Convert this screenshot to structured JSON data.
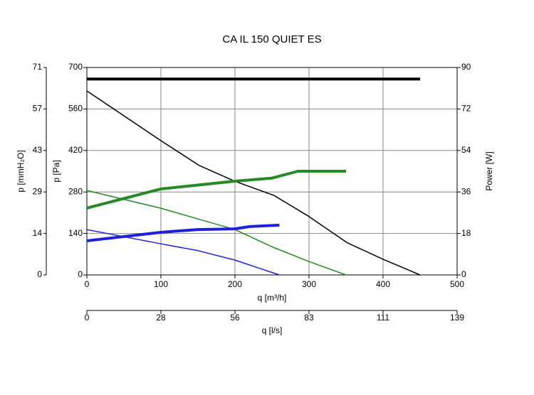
{
  "chart_data": {
    "type": "line",
    "title": "CA IL 150 QUIET ES",
    "xlabel": "q [m³/h]",
    "xlim": [
      0,
      500
    ],
    "xticks": [
      0,
      100,
      200,
      300,
      400,
      500
    ],
    "x2label": "q [l/s]",
    "x2lim": [
      0,
      138.89
    ],
    "x2ticks": [
      0,
      {
        "value": 27.78,
        "label": "28"
      },
      {
        "value": 55.56,
        "label": "56"
      },
      {
        "value": 83.33,
        "label": "83"
      },
      {
        "value": 111.11,
        "label": "111"
      },
      {
        "value": 138.89,
        "label": "139"
      }
    ],
    "ylabel": "p [Pa]",
    "ylim": [
      0,
      700
    ],
    "yticks": [
      0,
      140,
      280,
      420,
      560,
      700
    ],
    "y3label": "p [mmH₂O]",
    "y3lim": [
      0,
      71.38
    ],
    "y3ticks": [
      0,
      {
        "value": 14.28,
        "label": "14"
      },
      {
        "value": 28.55,
        "label": "29"
      },
      {
        "value": 42.83,
        "label": "43"
      },
      {
        "value": 57.1,
        "label": "57"
      },
      {
        "value": 71.38,
        "label": "71"
      }
    ],
    "y2label": "Power [W]",
    "y2lim": [
      0,
      90
    ],
    "y2ticks": [
      0,
      18,
      36,
      54,
      72,
      90
    ],
    "grid": true,
    "series": [
      {
        "color": "#000000",
        "width": 1.5,
        "x": [
          0,
          100,
          152,
          200,
          253,
          300,
          352,
          400,
          450
        ],
        "values": [
          621,
          453,
          369,
          316,
          268,
          197,
          108,
          53,
          0
        ]
      },
      {
        "color": "#000000",
        "width": 4,
        "axis": "y2",
        "x": [
          0,
          450
        ],
        "values": [
          85,
          85
        ]
      },
      {
        "color": "#228b22",
        "width": 1.5,
        "x": [
          0,
          100,
          200,
          250,
          300,
          350
        ],
        "values": [
          285,
          225,
          153,
          95,
          45,
          0
        ]
      },
      {
        "color": "#228b22",
        "width": 4,
        "axis": "y2",
        "x": [
          0,
          100,
          150,
          200,
          250,
          285,
          350
        ],
        "values": [
          29,
          37.3,
          39,
          40.7,
          42,
          45,
          45
        ]
      },
      {
        "color": "#1f1fdc",
        "width": 1.5,
        "x": [
          0,
          100,
          150,
          200,
          230,
          260
        ],
        "values": [
          153,
          105,
          82,
          50,
          25,
          0
        ]
      },
      {
        "color": "#1f1fdc",
        "width": 4,
        "axis": "y2",
        "x": [
          0,
          100,
          150,
          200,
          220,
          260
        ],
        "values": [
          14.8,
          18.5,
          19.7,
          20,
          21,
          21.6
        ]
      }
    ]
  }
}
